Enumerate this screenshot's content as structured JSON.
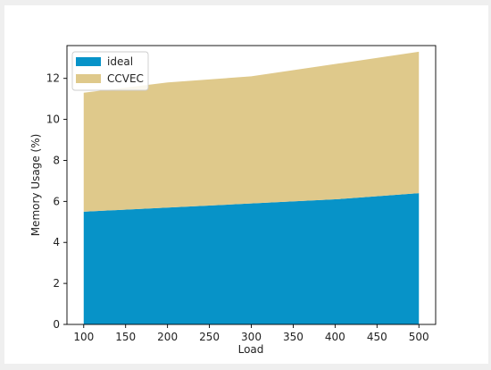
{
  "chart_data": {
    "type": "area",
    "stacked": true,
    "x": [
      100,
      200,
      300,
      400,
      500
    ],
    "series": [
      {
        "name": "ideal",
        "color": "#0793c8",
        "values": [
          5.5,
          5.7,
          5.9,
          6.1,
          6.4
        ]
      },
      {
        "name": "CCVEC",
        "color": "#dfc98b",
        "values": [
          5.8,
          6.1,
          6.2,
          6.6,
          6.9
        ]
      }
    ],
    "xlabel": "Load",
    "ylabel": "Memory Usage (%)",
    "xlim": [
      80,
      520
    ],
    "ylim": [
      0,
      13.6
    ],
    "xticks": [
      100,
      150,
      200,
      250,
      300,
      350,
      400,
      450,
      500
    ],
    "yticks": [
      0,
      2,
      4,
      6,
      8,
      10,
      12
    ],
    "legend_position": "top-left",
    "grid": false
  }
}
